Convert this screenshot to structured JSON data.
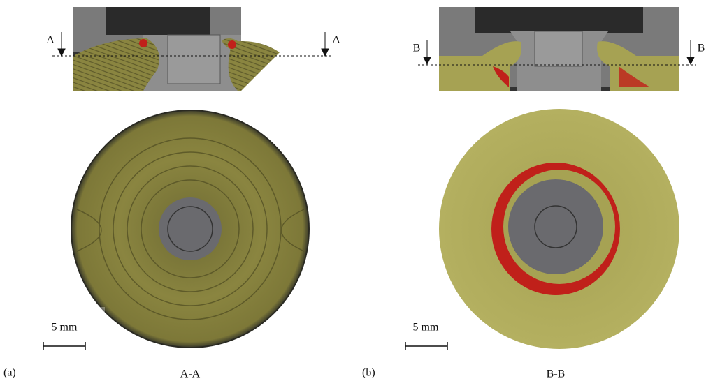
{
  "panels": [
    {
      "label": "(a)",
      "caption": "A-A",
      "section_marks": [
        "A",
        "A"
      ],
      "scale_bar": "5 mm"
    },
    {
      "label": "(b)",
      "caption": "B-B",
      "section_marks": [
        "B",
        "B"
      ],
      "scale_bar": "5 mm"
    }
  ]
}
